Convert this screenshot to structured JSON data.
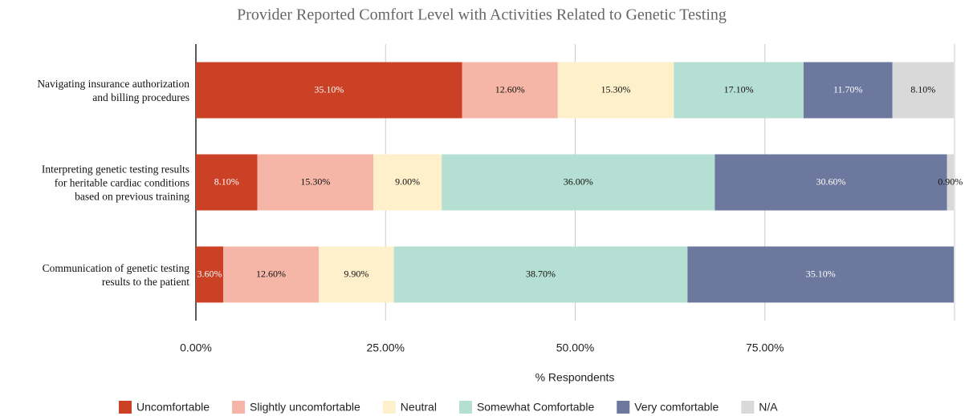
{
  "chart_data": {
    "type": "stacked_barh",
    "title": "Provider Reported Comfort Level with Activities Related to Genetic Testing",
    "xlabel": "% Respondents",
    "categories": [
      "Navigating insurance authorization\nand billing procedures",
      "Interpreting genetic testing results\nfor heritable cardiac conditions\nbased on previous training",
      "Communication of genetic testing\nresults to the patient"
    ],
    "series": [
      {
        "name": "Uncomfortable",
        "color": "#cb4125",
        "values": [
          35.1,
          8.1,
          3.6
        ],
        "value_labels": [
          "35.10%",
          "8.10%",
          "3.60%"
        ]
      },
      {
        "name": "Slightly uncomfortable",
        "color": "#f6b6a7",
        "values": [
          12.6,
          15.3,
          12.6
        ],
        "value_labels": [
          "12.60%",
          "15.30%",
          "12.60%"
        ]
      },
      {
        "name": "Neutral",
        "color": "#fdf0cb",
        "values": [
          15.3,
          9.0,
          9.9
        ],
        "value_labels": [
          "15.30%",
          "9.00%",
          "9.90%"
        ]
      },
      {
        "name": "Somewhat Comfortable",
        "color": "#b5dfd2",
        "values": [
          17.1,
          36.0,
          38.7
        ],
        "value_labels": [
          "17.10%",
          "36.00%",
          "38.70%"
        ]
      },
      {
        "name": "Very comfortable",
        "color": "#6c789e",
        "values": [
          11.7,
          30.6,
          35.1
        ],
        "value_labels": [
          "11.70%",
          "30.60%",
          "35.10%"
        ]
      },
      {
        "name": "N/A",
        "color": "#d9d9d9",
        "values": [
          8.1,
          0.9,
          null
        ],
        "value_labels": [
          "8.10%",
          "0.90%",
          null
        ]
      }
    ],
    "xlim": [
      0,
      100
    ],
    "xticks": [
      {
        "value": 0,
        "label": "0.00%"
      },
      {
        "value": 25,
        "label": "25.00%"
      },
      {
        "value": 50,
        "label": "50.00%"
      },
      {
        "value": 75,
        "label": "75.00%"
      }
    ],
    "grid": true,
    "legend": "bottom"
  }
}
